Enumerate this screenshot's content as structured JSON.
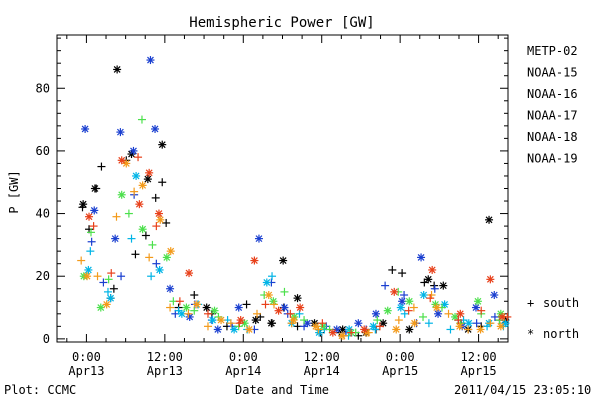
{
  "chart_data": {
    "type": "scatter",
    "title": "Hemispheric Power [GW]",
    "ylabel": "P [GW]",
    "xlabel": "Date and Time",
    "ylim": [
      -1,
      97
    ],
    "xlim_hours": [
      -4.5,
      64.5
    ],
    "yticks": [
      0,
      20,
      40,
      60,
      80
    ],
    "xticks": [
      {
        "hour": 0,
        "time": "0:00",
        "date": "Apr13"
      },
      {
        "hour": 12,
        "time": "12:00",
        "date": "Apr13"
      },
      {
        "hour": 24,
        "time": "0:00",
        "date": "Apr14"
      },
      {
        "hour": 36,
        "time": "12:00",
        "date": "Apr14"
      },
      {
        "hour": 48,
        "time": "0:00",
        "date": "Apr15"
      },
      {
        "hour": 60,
        "time": "12:00",
        "date": "Apr15"
      }
    ],
    "marker_legend": [
      {
        "symbol": "+",
        "label": "south"
      },
      {
        "symbol": "*",
        "label": "north"
      }
    ],
    "series": [
      {
        "name": "METP-02",
        "color": "#000000",
        "south": [
          [
            -0.6,
            42
          ],
          [
            0.4,
            35
          ],
          [
            1.5,
            48
          ],
          [
            2.3,
            55
          ],
          [
            3.7,
            13
          ],
          [
            4.2,
            16
          ],
          [
            6.1,
            57
          ],
          [
            7.5,
            27
          ],
          [
            9.1,
            33
          ],
          [
            10.6,
            45
          ],
          [
            11.6,
            50
          ],
          [
            12.2,
            37
          ],
          [
            14.1,
            10
          ],
          [
            16.5,
            14
          ],
          [
            19.2,
            8
          ],
          [
            21.5,
            4
          ],
          [
            24.5,
            11
          ],
          [
            26.6,
            7
          ],
          [
            28.4,
            5
          ],
          [
            30.2,
            10
          ],
          [
            32.3,
            4
          ],
          [
            35.8,
            2
          ],
          [
            38.7,
            2
          ],
          [
            41.6,
            1
          ],
          [
            44.3,
            3
          ],
          [
            46.8,
            22
          ],
          [
            48.3,
            21
          ],
          [
            51.7,
            18
          ],
          [
            53.2,
            17
          ],
          [
            57.3,
            5
          ],
          [
            60.4,
            4
          ],
          [
            63.2,
            6
          ]
        ],
        "north": [
          [
            -0.5,
            43
          ],
          [
            1.3,
            48
          ],
          [
            4.7,
            86
          ],
          [
            6.9,
            59
          ],
          [
            9.4,
            51
          ],
          [
            11.6,
            62
          ],
          [
            18.4,
            10
          ],
          [
            25.9,
            6
          ],
          [
            28.3,
            5
          ],
          [
            30.1,
            25
          ],
          [
            32.3,
            13
          ],
          [
            34.9,
            5
          ],
          [
            39.2,
            3
          ],
          [
            42.8,
            2
          ],
          [
            45.4,
            5
          ],
          [
            49.4,
            3
          ],
          [
            52.3,
            19
          ],
          [
            54.6,
            17
          ],
          [
            58.4,
            3
          ],
          [
            61.6,
            38
          ],
          [
            64.1,
            6
          ]
        ]
      },
      {
        "name": "NOAA-15",
        "color": "#1a3fd0",
        "south": [
          [
            0.8,
            31
          ],
          [
            2.6,
            18
          ],
          [
            5.3,
            20
          ],
          [
            7.3,
            46
          ],
          [
            10.7,
            24
          ],
          [
            13.6,
            8
          ],
          [
            16.6,
            11
          ],
          [
            19.2,
            6
          ],
          [
            22.3,
            4
          ],
          [
            25.7,
            3
          ],
          [
            28.3,
            18
          ],
          [
            30.8,
            8
          ],
          [
            33.3,
            4
          ],
          [
            36.7,
            4
          ],
          [
            39.7,
            2
          ],
          [
            42.8,
            3
          ],
          [
            45.7,
            17
          ],
          [
            48.6,
            14
          ],
          [
            50.5,
            5
          ],
          [
            53.3,
            16
          ],
          [
            56.9,
            6
          ],
          [
            59.7,
            5
          ],
          [
            62.5,
            7
          ]
        ],
        "north": [
          [
            -0.2,
            67
          ],
          [
            1.2,
            41
          ],
          [
            4.4,
            32
          ],
          [
            5.2,
            66
          ],
          [
            7.2,
            60
          ],
          [
            9.8,
            89
          ],
          [
            10.5,
            67
          ],
          [
            12.8,
            16
          ],
          [
            15.8,
            7
          ],
          [
            20.1,
            3
          ],
          [
            23.3,
            10
          ],
          [
            26.4,
            32
          ],
          [
            30.3,
            10
          ],
          [
            33.8,
            5
          ],
          [
            38.3,
            3
          ],
          [
            41.6,
            5
          ],
          [
            44.3,
            8
          ],
          [
            48.3,
            12
          ],
          [
            51.2,
            26
          ],
          [
            53.8,
            8
          ],
          [
            57.5,
            4
          ],
          [
            59.6,
            10
          ],
          [
            62.4,
            14
          ]
        ]
      },
      {
        "name": "NOAA-16",
        "color": "#00b4e6",
        "south": [
          [
            0.6,
            28
          ],
          [
            3.3,
            15
          ],
          [
            6.9,
            32
          ],
          [
            9.9,
            20
          ],
          [
            14.1,
            9
          ],
          [
            17.1,
            11
          ],
          [
            21.6,
            6
          ],
          [
            24.6,
            3
          ],
          [
            28.4,
            20
          ],
          [
            32.6,
            8
          ],
          [
            36.4,
            3
          ],
          [
            40.1,
            1
          ],
          [
            44.2,
            3
          ],
          [
            48.7,
            8
          ],
          [
            52.4,
            5
          ],
          [
            55.7,
            3
          ],
          [
            57.7,
            6
          ],
          [
            61.3,
            4
          ],
          [
            63.8,
            4
          ]
        ],
        "north": [
          [
            0.3,
            22
          ],
          [
            3.7,
            13
          ],
          [
            7.6,
            52
          ],
          [
            11.2,
            22
          ],
          [
            14.6,
            8
          ],
          [
            19.3,
            6
          ],
          [
            22.6,
            3
          ],
          [
            27.6,
            18
          ],
          [
            31.4,
            5
          ],
          [
            35.6,
            2
          ],
          [
            40.2,
            3
          ],
          [
            43.9,
            4
          ],
          [
            48.1,
            10
          ],
          [
            51.6,
            14
          ],
          [
            54.8,
            11
          ],
          [
            58.5,
            5
          ],
          [
            61.6,
            5
          ],
          [
            64.1,
            5
          ]
        ]
      },
      {
        "name": "NOAA-17",
        "color": "#4ce04c",
        "south": [
          [
            0.7,
            34
          ],
          [
            3.4,
            19
          ],
          [
            6.5,
            40
          ],
          [
            8.5,
            70
          ],
          [
            10.1,
            30
          ],
          [
            13.3,
            12
          ],
          [
            16.5,
            9
          ],
          [
            20.2,
            7
          ],
          [
            23.3,
            4
          ],
          [
            27.2,
            14
          ],
          [
            30.3,
            15
          ],
          [
            33.3,
            6
          ],
          [
            37.2,
            3
          ],
          [
            41.2,
            2
          ],
          [
            44.5,
            6
          ],
          [
            47.7,
            15
          ],
          [
            51.5,
            7
          ],
          [
            54.4,
            10
          ],
          [
            57.2,
            5
          ],
          [
            60.4,
            8
          ],
          [
            63.2,
            6
          ]
        ],
        "north": [
          [
            -0.4,
            20
          ],
          [
            2.2,
            10
          ],
          [
            5.4,
            46
          ],
          [
            8.6,
            35
          ],
          [
            12.3,
            26
          ],
          [
            15.3,
            10
          ],
          [
            19.6,
            9
          ],
          [
            24.2,
            5
          ],
          [
            28.6,
            12
          ],
          [
            31.8,
            7
          ],
          [
            36.2,
            4
          ],
          [
            40.5,
            2
          ],
          [
            46.1,
            9
          ],
          [
            49.4,
            12
          ],
          [
            53.4,
            11
          ],
          [
            56.4,
            7
          ],
          [
            59.9,
            12
          ],
          [
            63.4,
            8
          ]
        ]
      },
      {
        "name": "NOAA-18",
        "color": "#f39a1a",
        "south": [
          [
            -0.8,
            25
          ],
          [
            1.7,
            20
          ],
          [
            4.6,
            39
          ],
          [
            7.3,
            47
          ],
          [
            9.6,
            26
          ],
          [
            12.8,
            10
          ],
          [
            15.6,
            8
          ],
          [
            18.6,
            4
          ],
          [
            22.1,
            5
          ],
          [
            26.1,
            8
          ],
          [
            28.7,
            11
          ],
          [
            31.4,
            5
          ],
          [
            35.5,
            3
          ],
          [
            39.4,
            1
          ],
          [
            43.2,
            2
          ],
          [
            47.8,
            6
          ],
          [
            50.1,
            10
          ],
          [
            52.8,
            14
          ],
          [
            55.4,
            8
          ],
          [
            58.4,
            3
          ],
          [
            61.8,
            5
          ],
          [
            63.9,
            7
          ]
        ],
        "north": [
          [
            0.1,
            20
          ],
          [
            3.1,
            11
          ],
          [
            6.1,
            56
          ],
          [
            8.6,
            49
          ],
          [
            11.3,
            38
          ],
          [
            12.9,
            28
          ],
          [
            16.9,
            11
          ],
          [
            20.6,
            6
          ],
          [
            24.9,
            3
          ],
          [
            27.9,
            14
          ],
          [
            31.7,
            6
          ],
          [
            35.1,
            4
          ],
          [
            39.1,
            1
          ],
          [
            42.9,
            2
          ],
          [
            47.4,
            3
          ],
          [
            50.2,
            5
          ],
          [
            53.6,
            10
          ],
          [
            57.1,
            4
          ],
          [
            60.3,
            3
          ],
          [
            63.4,
            4
          ]
        ]
      },
      {
        "name": "NOAA-19",
        "color": "#e8401a",
        "south": [
          [
            1.1,
            36
          ],
          [
            3.8,
            21
          ],
          [
            7.9,
            58
          ],
          [
            10.7,
            36
          ],
          [
            14.3,
            12
          ],
          [
            18.6,
            8
          ],
          [
            23.4,
            5
          ],
          [
            27.4,
            11
          ],
          [
            31.2,
            8
          ],
          [
            36.1,
            5
          ],
          [
            40.5,
            2
          ],
          [
            44.9,
            4
          ],
          [
            49.3,
            9
          ],
          [
            52.6,
            13
          ],
          [
            56.9,
            6
          ],
          [
            60.4,
            9
          ],
          [
            64.4,
            7
          ]
        ],
        "north": [
          [
            0.4,
            39
          ],
          [
            5.4,
            57
          ],
          [
            8.1,
            43
          ],
          [
            9.6,
            53
          ],
          [
            11.1,
            40
          ],
          [
            15.7,
            21
          ],
          [
            23.6,
            6
          ],
          [
            25.7,
            25
          ],
          [
            29.4,
            9
          ],
          [
            32.7,
            10
          ],
          [
            37.7,
            2
          ],
          [
            42.5,
            3
          ],
          [
            47.1,
            15
          ],
          [
            52.9,
            22
          ],
          [
            57.2,
            8
          ],
          [
            61.8,
            19
          ],
          [
            63.6,
            7
          ]
        ]
      }
    ]
  },
  "footer": {
    "plot_credit": "Plot: CCMC",
    "timestamp": "2011/04/15 23:05:10"
  }
}
